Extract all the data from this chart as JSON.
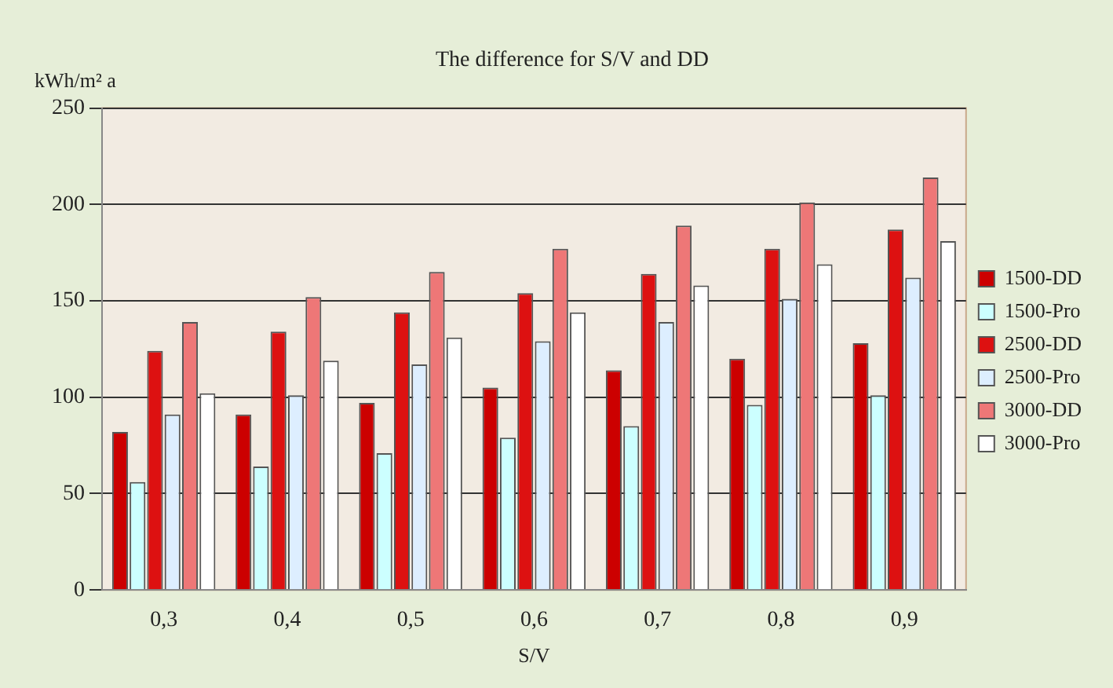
{
  "chart_data": {
    "type": "bar",
    "title": "The difference for S/V and DD",
    "xlabel": "S/V",
    "ylabel": "kWh/m² a",
    "categories": [
      "0,3",
      "0,4",
      "0,5",
      "0,6",
      "0,7",
      "0,8",
      "0,9"
    ],
    "series": [
      {
        "name": "1500-DD",
        "color": "#cc0000",
        "values": [
          82,
          91,
          97,
          105,
          114,
          120,
          128
        ]
      },
      {
        "name": "1500-Pro",
        "color": "#ccffff",
        "values": [
          56,
          64,
          71,
          79,
          85,
          96,
          101
        ]
      },
      {
        "name": "2500-DD",
        "color": "#dd1111",
        "values": [
          124,
          134,
          144,
          154,
          164,
          177,
          187
        ]
      },
      {
        "name": "2500-Pro",
        "color": "#ddeeff",
        "values": [
          91,
          101,
          117,
          129,
          139,
          151,
          162
        ]
      },
      {
        "name": "3000-DD",
        "color": "#ee7777",
        "values": [
          139,
          152,
          165,
          177,
          189,
          201,
          214
        ]
      },
      {
        "name": "3000-Pro",
        "color": "#ffffff",
        "values": [
          102,
          119,
          131,
          144,
          158,
          169,
          181
        ]
      }
    ],
    "ylim": [
      0,
      250
    ],
    "yticks": [
      0,
      50,
      100,
      150,
      200,
      250
    ],
    "grid": "y",
    "legend": "right"
  }
}
